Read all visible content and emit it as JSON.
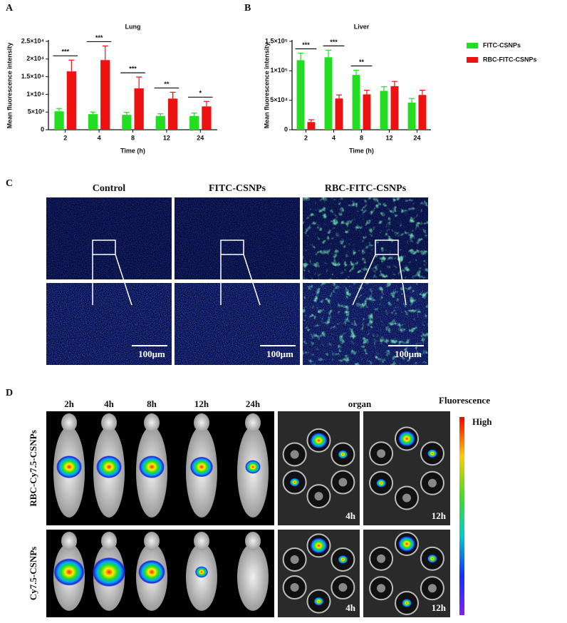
{
  "panel_labels": [
    "A",
    "B",
    "C",
    "D"
  ],
  "chart_data": [
    {
      "type": "bar",
      "title": "Lung",
      "y_label": "Mean fluorescence intensity",
      "x_label": "Time (h)",
      "categories": [
        "2",
        "4",
        "8",
        "12",
        "24"
      ],
      "series": [
        {
          "color": "#22dd22",
          "values": [
            5200,
            4400,
            4200,
            3900,
            3900
          ],
          "errors": [
            800,
            600,
            700,
            600,
            800
          ]
        },
        {
          "color": "#ee1111",
          "values": [
            16500,
            19700,
            11700,
            8800,
            6600
          ],
          "errors": [
            3200,
            4000,
            3200,
            1800,
            1400
          ]
        }
      ],
      "significance": [
        "***",
        "***",
        "***",
        "**",
        "*"
      ],
      "ylim": [
        0,
        25000
      ],
      "yticks": [
        0,
        {
          "value": 5000,
          "label": "5×10³"
        },
        {
          "value": 10000,
          "label": "1×10⁴"
        },
        {
          "value": 15000,
          "label": "1.5×10⁴"
        },
        {
          "value": 20000,
          "label": "2×10⁴"
        },
        {
          "value": 25000,
          "label": "2.5×10⁴"
        }
      ]
    },
    {
      "type": "bar",
      "title": "Liver",
      "y_label": "Mean fluorescence intensity",
      "x_label": "Time (h)",
      "categories": [
        "2",
        "4",
        "8",
        "12",
        "24"
      ],
      "series": [
        {
          "name": "FITC-CSNPs",
          "color": "#22dd22",
          "values": [
            118000,
            123000,
            93000,
            66000,
            46000
          ],
          "errors": [
            12000,
            12000,
            8000,
            7000,
            7000
          ]
        },
        {
          "name": "RBC-FITC-CSNPs",
          "color": "#ee1111",
          "values": [
            13000,
            53000,
            60000,
            74000,
            59000
          ],
          "errors": [
            4000,
            6000,
            7000,
            8000,
            8000
          ]
        }
      ],
      "significance": [
        "***",
        "***",
        "**",
        null,
        null
      ],
      "legend": "right",
      "ylim": [
        0,
        150000
      ],
      "yticks": [
        0,
        {
          "value": 50000,
          "label": "5×10⁴"
        },
        {
          "value": 100000,
          "label": "1×10⁵"
        },
        {
          "value": 150000,
          "label": "1.5×10⁵"
        }
      ]
    }
  ],
  "histology": {
    "columns": [
      "Control",
      "FITC-CSNPs",
      "RBC-FITC-CSNPs"
    ],
    "scale_bars": [
      "100μm",
      "100μm",
      "100μm"
    ]
  },
  "imaging": {
    "times": [
      "2h",
      "4h",
      "8h",
      "12h",
      "24h"
    ],
    "organ_title": "organ",
    "colorbar_title": "Fluorescence",
    "colorbar_high": "High",
    "rows": [
      {
        "label": "RBC-Cy7.5-CSNPs",
        "organ_times": [
          "4h",
          "12h"
        ]
      },
      {
        "label": "Cy7.5-CSNPs",
        "organ_times": [
          "4h",
          "12h"
        ]
      }
    ]
  }
}
